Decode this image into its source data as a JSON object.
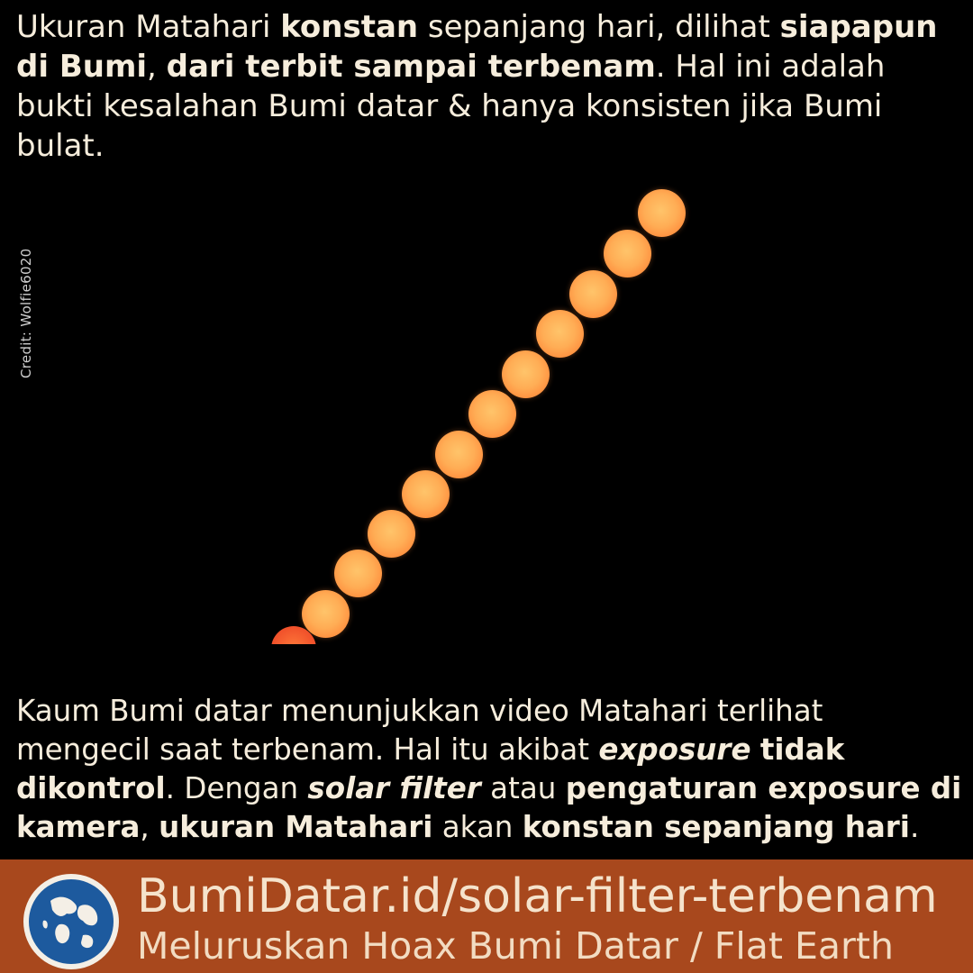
{
  "top": {
    "t1": "Ukuran Matahari ",
    "b1": "konstan",
    "t2": " sepanjang hari, dilihat ",
    "b2": "siapapun di Bumi",
    "t3": ", ",
    "b3": "dari terbit sampai terbenam",
    "t4": ". Hal ini adalah bukti kesalahan Bumi datar & hanya konsisten jika Bumi bulat."
  },
  "credit": "Credit: Wolfie6020",
  "bottom": {
    "t1": "Kaum Bumi datar menunjukkan video Matahari terlihat mengecil saat terbenam. Hal itu akibat ",
    "bi1": "exposure",
    "t2": " ",
    "b1": "tidak dikontrol",
    "t3": ". Dengan ",
    "bi2": "solar filter",
    "t4": " atau ",
    "b2": "pengaturan exposure di kamera",
    "t5": ", ",
    "b3": "ukuran Matahari",
    "t6": " akan ",
    "b4": "konstan sepanjang hari",
    "t7": "."
  },
  "footer": {
    "url": "BumiDatar.id/solar-filter-terbenam",
    "tagline": "Meluruskan Hoax Bumi Datar / Flat Earth",
    "logo_icon": "globe-icon"
  },
  "colors": {
    "background": "#000000",
    "text": "#f6eddc",
    "footer_bg": "#a8481d",
    "sun": "#ffad55",
    "globe_ocean": "#1d5a9e"
  }
}
